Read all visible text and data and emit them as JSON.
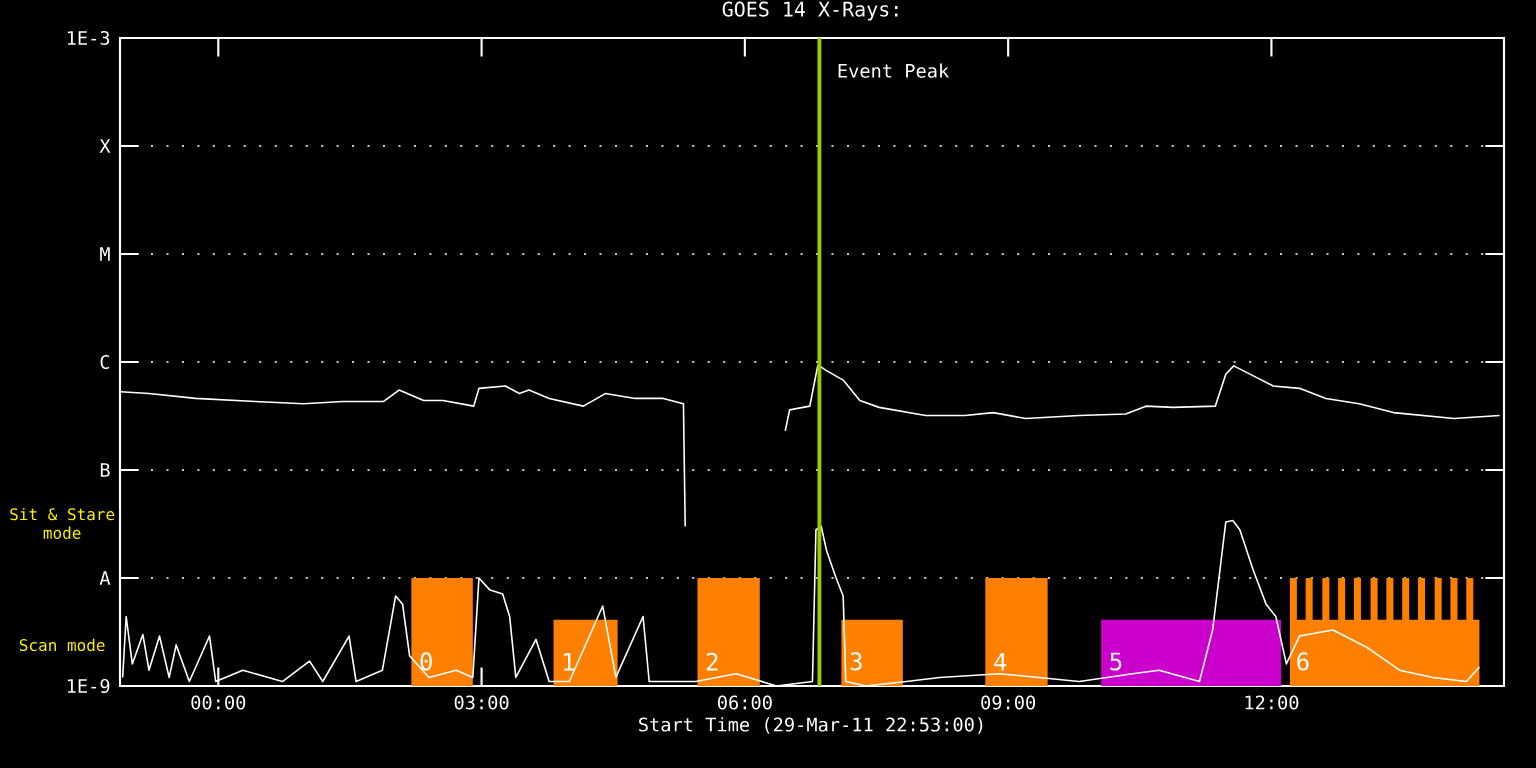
{
  "chart_data": {
    "type": "line",
    "title": "GOES 14 X-Rays:",
    "xlabel": "Start Time (29-Mar-11 22:53:00)",
    "log": "y",
    "grid": "y",
    "xlim": [
      -1.12,
      14.65
    ],
    "ylim": [
      1e-09,
      0.001
    ],
    "xticks": [
      {
        "value": 0,
        "label": "00:00"
      },
      {
        "value": 3,
        "label": "03:00"
      },
      {
        "value": 6,
        "label": "06:00"
      },
      {
        "value": 9,
        "label": "09:00"
      },
      {
        "value": 12,
        "label": "12:00"
      }
    ],
    "yticks": [
      {
        "value": 1e-09,
        "label": "1E-9"
      },
      {
        "value": 1e-08,
        "label": "A"
      },
      {
        "value": 1e-07,
        "label": "B"
      },
      {
        "value": 1e-06,
        "label": "C"
      },
      {
        "value": 1e-05,
        "label": "M"
      },
      {
        "value": 0.0001,
        "label": "X"
      },
      {
        "value": 0.001,
        "label": "1E-3"
      },
      {
        "value": 2.4e-09,
        "label": "Scan mode"
      },
      {
        "value": 3.2e-08,
        "label": "Sit & Stare mode"
      }
    ],
    "series": [
      {
        "type": "area",
        "color": "#ff8000",
        "x": [
          2.2,
          2.2,
          2.9,
          2.9,
          3.82,
          3.82,
          4.55,
          4.55,
          5.46,
          5.46,
          6.17,
          6.17,
          7.1,
          7.1,
          7.8,
          7.8,
          8.74,
          8.74,
          9.45,
          9.45,
          12.21,
          12.21,
          12.29,
          12.29,
          12.39,
          12.39,
          12.47,
          12.47,
          12.58,
          12.58,
          12.66,
          12.66,
          12.76,
          12.76,
          12.84,
          12.84,
          12.94,
          12.94,
          13.02,
          13.02,
          13.13,
          13.13,
          13.21,
          13.21,
          13.31,
          13.31,
          13.39,
          13.39,
          13.49,
          13.49,
          13.57,
          13.57,
          13.67,
          13.67,
          13.75,
          13.75,
          13.86,
          13.86,
          13.94,
          13.94,
          14.04,
          14.04,
          14.12,
          14.12,
          14.22,
          14.22,
          14.3,
          14.3,
          14.37,
          14.37
        ],
        "values": [
          1e-09,
          1e-08,
          1e-08,
          1e-09,
          1e-09,
          4.1e-09,
          4.1e-09,
          1e-09,
          1e-09,
          1e-08,
          1e-08,
          1e-09,
          1e-09,
          4.1e-09,
          4.1e-09,
          1e-09,
          1e-09,
          1e-08,
          1e-08,
          1e-09,
          1e-09,
          1e-08,
          1e-08,
          4.1e-09,
          4.1e-09,
          1e-08,
          1e-08,
          4.1e-09,
          4.1e-09,
          1e-08,
          1e-08,
          4.1e-09,
          4.1e-09,
          1e-08,
          1e-08,
          4.1e-09,
          4.1e-09,
          1e-08,
          1e-08,
          4.1e-09,
          4.1e-09,
          1e-08,
          1e-08,
          4.1e-09,
          4.1e-09,
          1e-08,
          1e-08,
          4.1e-09,
          4.1e-09,
          1e-08,
          1e-08,
          4.1e-09,
          4.1e-09,
          1e-08,
          1e-08,
          4.1e-09,
          4.1e-09,
          1e-08,
          1e-08,
          4.1e-09,
          4.1e-09,
          1e-08,
          1e-08,
          4.1e-09,
          4.1e-09,
          1e-08,
          1e-08,
          4.1e-09,
          4.1e-09,
          1e-09
        ]
      },
      {
        "type": "area",
        "color": "#cc00cc",
        "x": [
          10.06,
          10.06,
          12.11,
          12.11
        ],
        "values": [
          1e-09,
          4.1e-09,
          4.1e-09,
          1e-09
        ]
      },
      {
        "color": "#ffffff",
        "x": [
          -1.09,
          -1.05,
          -0.98,
          -0.86,
          -0.79,
          -0.67,
          -0.56,
          -0.48,
          -0.33,
          -0.1,
          -0.03,
          0.28,
          0.73,
          1.04,
          1.19,
          1.49,
          1.57,
          1.87,
          2.02,
          2.1,
          2.18,
          2.4,
          2.71,
          2.9,
          2.97,
          3.09,
          3.24,
          3.32,
          3.39,
          3.62,
          3.77,
          4.0,
          4.38,
          4.53,
          4.84,
          4.91,
          5.44,
          5.9,
          6.36,
          6.77,
          6.81,
          6.87,
          6.93,
          7.04,
          7.12,
          7.15,
          7.38,
          7.84,
          8.22,
          8.9,
          9.81,
          10.42,
          10.72,
          11.18,
          11.33,
          11.48,
          11.56,
          11.64,
          11.79,
          11.94,
          12.05,
          12.17,
          12.32,
          12.7,
          13.08,
          13.46,
          13.84,
          14.22,
          14.37
        ],
        "values": [
          1.2e-09,
          4.4e-09,
          1.6e-09,
          3e-09,
          1.4e-09,
          2.9e-09,
          1.2e-09,
          2.4e-09,
          1.1e-09,
          2.9e-09,
          1.1e-09,
          1.4e-09,
          1.1e-09,
          1.7e-09,
          1.1e-09,
          2.9e-09,
          1.1e-09,
          1.4e-09,
          6.8e-09,
          5.7e-09,
          1.9e-09,
          1.2e-09,
          1.4e-09,
          1.2e-09,
          1e-08,
          7.8e-09,
          7.1e-09,
          4.4e-09,
          1.2e-09,
          2.7e-09,
          1.1e-09,
          1.1e-09,
          5.5e-09,
          1.2e-09,
          4.4e-09,
          1.1e-09,
          1.1e-09,
          1.3e-09,
          1e-09,
          1.1e-09,
          2.8e-08,
          3e-08,
          1.8e-08,
          1e-08,
          6.8e-09,
          1.1e-09,
          1e-09,
          1.1e-09,
          1.2e-09,
          1.3e-09,
          1.1e-09,
          1.3e-09,
          1.4e-09,
          1.1e-09,
          3.3e-09,
          3.3e-08,
          3.4e-08,
          2.8e-08,
          1.2e-08,
          5.7e-09,
          4.4e-09,
          1.6e-09,
          2.9e-09,
          3.3e-09,
          2.3e-09,
          1.4e-09,
          1.2e-09,
          1.1e-09,
          1.5e-09
        ]
      },
      {
        "color": "#ffffff",
        "x": [
          -1.11,
          -0.79,
          -0.26,
          0.42,
          0.97,
          1.42,
          1.88,
          2.06,
          2.34,
          2.56,
          2.91,
          2.97,
          3.27,
          3.43,
          3.54,
          3.77,
          4.16,
          4.41,
          4.75,
          5.07,
          5.3,
          5.31,
          5.32,
          5.9,
          6.46,
          6.51,
          6.74,
          6.83,
          6.85,
          6.92,
          7.12,
          7.31,
          7.53,
          8.06,
          8.51,
          8.83,
          9.2,
          9.81,
          10.34,
          10.57,
          10.88,
          11.36,
          11.48,
          11.57,
          11.8,
          12.02,
          12.32,
          12.62,
          13.0,
          13.39,
          14.08,
          14.6
        ],
        "values": [
          5.3e-07,
          5.1e-07,
          4.6e-07,
          4.3e-07,
          4.1e-07,
          4.3e-07,
          4.3e-07,
          5.5e-07,
          4.4e-07,
          4.4e-07,
          3.9e-07,
          5.7e-07,
          6e-07,
          5.1e-07,
          5.5e-07,
          4.6e-07,
          3.9e-07,
          5.1e-07,
          4.6e-07,
          4.6e-07,
          4.1e-07,
          1.1e-07,
          3e-08,
          null,
          2.3e-07,
          3.6e-07,
          3.9e-07,
          9.2e-07,
          9.2e-07,
          8.4e-07,
          6.8e-07,
          4.4e-07,
          3.8e-07,
          3.2e-07,
          3.2e-07,
          3.4e-07,
          3e-07,
          3.2e-07,
          3.3e-07,
          3.9e-07,
          3.8e-07,
          3.9e-07,
          7.7e-07,
          9.2e-07,
          7.4e-07,
          6e-07,
          5.7e-07,
          4.6e-07,
          4.1e-07,
          3.4e-07,
          3e-07,
          3.2e-07
        ]
      }
    ],
    "ref_lines": [
      {
        "axis": "x",
        "value": 6.85,
        "label": "Event Peak",
        "color": "#99cc00"
      }
    ],
    "annotations": [
      {
        "text": "0",
        "x": 2.25,
        "y": 1.3e-09
      },
      {
        "text": "1",
        "x": 3.87,
        "y": 1.3e-09
      },
      {
        "text": "2",
        "x": 5.51,
        "y": 1.3e-09
      },
      {
        "text": "3",
        "x": 7.15,
        "y": 1.3e-09
      },
      {
        "text": "4",
        "x": 8.79,
        "y": 1.3e-09
      },
      {
        "text": "5",
        "x": 10.11,
        "y": 1.3e-09
      },
      {
        "text": "6",
        "x": 12.24,
        "y": 1.3e-09
      }
    ]
  }
}
